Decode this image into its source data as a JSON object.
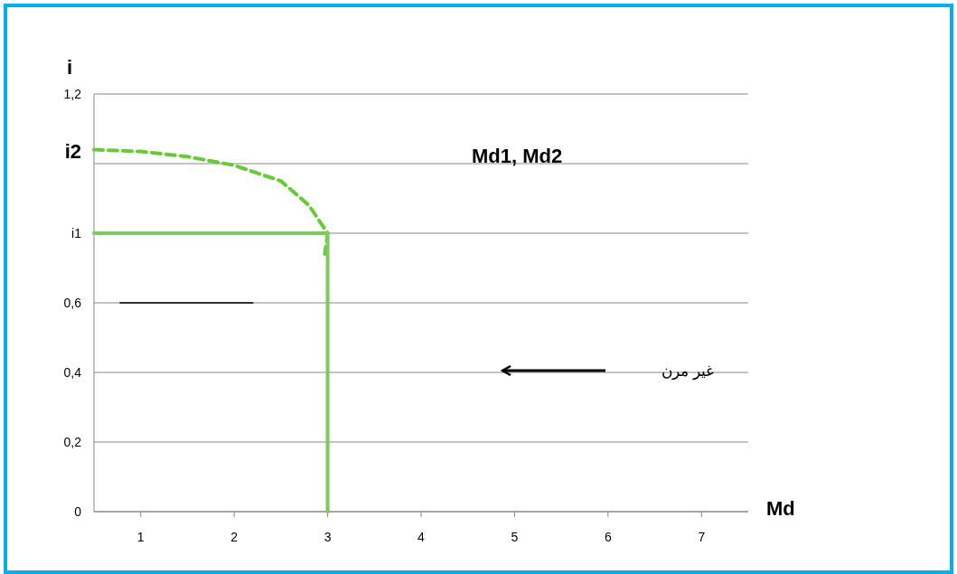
{
  "chart_data": {
    "type": "line",
    "xlabel": "Md",
    "ylabel": "i",
    "x": [
      0.5,
      1,
      1.5,
      2,
      2.5,
      2.8,
      3,
      2.97
    ],
    "xlim": [
      0.5,
      7.5
    ],
    "xticks": [
      1,
      2,
      3,
      4,
      5,
      6,
      7
    ],
    "ylim": [
      0,
      1.2
    ],
    "yticks": [
      {
        "value": 0,
        "label": "0"
      },
      {
        "value": 0.2,
        "label": "0,2"
      },
      {
        "value": 0.4,
        "label": "0,4"
      },
      {
        "value": 0.6,
        "label": "0,6"
      },
      {
        "value": 0.8,
        "label": "i1"
      },
      {
        "value": 1.0,
        "label": null
      },
      {
        "value": 1.2,
        "label": "1,2"
      }
    ],
    "grid": "y",
    "series": [
      {
        "color": "#66cc33",
        "line_style": "dashed",
        "values": [
          1.04,
          1.035,
          1.02,
          0.995,
          0.95,
          0.88,
          0.8,
          0.74
        ]
      },
      {
        "color": "#80c860",
        "x": [
          0.5,
          3
        ],
        "values": [
          0.8,
          0.8
        ]
      },
      {
        "color": "#80c860",
        "x": [
          3,
          3
        ],
        "values": [
          0,
          0.8
        ]
      },
      {
        "color": "#000000",
        "x": [
          0.78,
          2.2
        ],
        "values": [
          0.6,
          0.6
        ]
      }
    ],
    "annotations": [
      "i2",
      "Md1, Md2",
      "غير مرن"
    ]
  }
}
